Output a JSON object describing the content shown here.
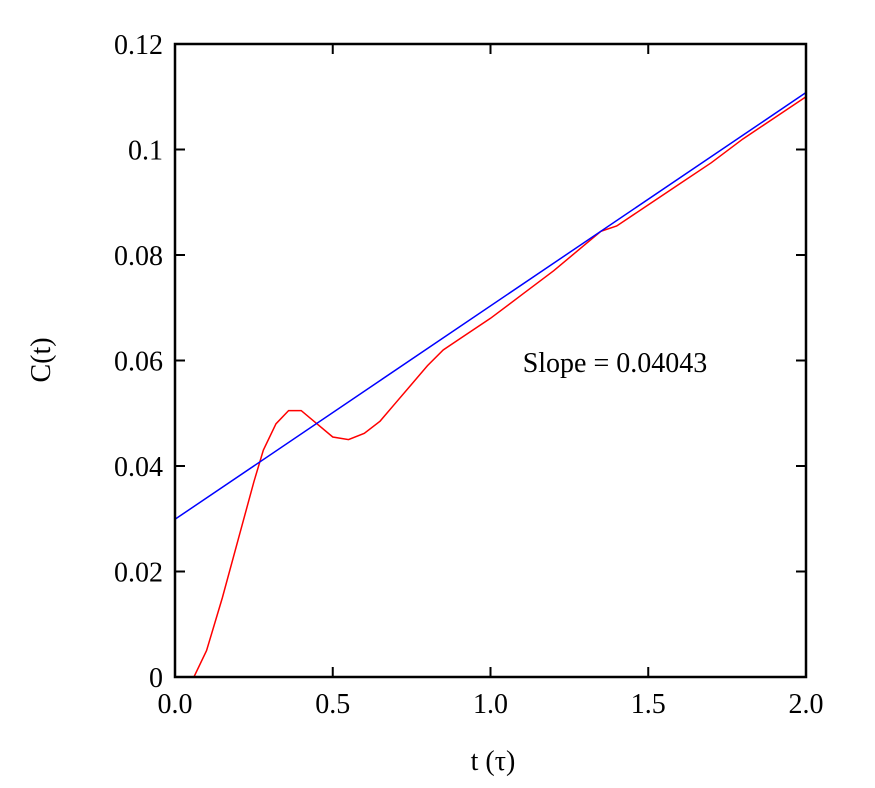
{
  "chart_data": {
    "type": "line",
    "xlabel": "t (τ)",
    "ylabel": "C(t)",
    "annotation": "Slope = 0.04043",
    "xlim": [
      0,
      2
    ],
    "ylim": [
      0,
      0.12
    ],
    "xticks": [
      {
        "value": 0,
        "label": "0.0"
      },
      {
        "value": 0.5,
        "label": "0.5"
      },
      {
        "value": 1,
        "label": "1.0"
      },
      {
        "value": 1.5,
        "label": "1.5"
      },
      {
        "value": 2,
        "label": "2.0"
      }
    ],
    "yticks": [
      0,
      0.02,
      0.04,
      0.06,
      0.08,
      0.1,
      0.12
    ],
    "series": [
      {
        "color": "#ff0000",
        "x": [
          0,
          0.06,
          0.1,
          0.15,
          0.2,
          0.25,
          0.28,
          0.32,
          0.36,
          0.4,
          0.45,
          0.5,
          0.55,
          0.6,
          0.65,
          0.7,
          0.75,
          0.8,
          0.85,
          0.9,
          1.0,
          1.1,
          1.2,
          1.3,
          1.35,
          1.4,
          1.5,
          1.6,
          1.7,
          1.8,
          1.9,
          2.0
        ],
        "values": [
          0,
          0,
          0.005,
          0.015,
          0.026,
          0.037,
          0.043,
          0.048,
          0.0505,
          0.0505,
          0.048,
          0.0455,
          0.045,
          0.0462,
          0.0485,
          0.052,
          0.0555,
          0.059,
          0.062,
          0.064,
          0.068,
          0.0725,
          0.077,
          0.082,
          0.0845,
          0.0855,
          0.0895,
          0.0935,
          0.0975,
          0.102,
          0.106,
          0.11
        ]
      },
      {
        "color": "#0000ff",
        "x": [
          0,
          2
        ],
        "values": [
          0.0299,
          0.1108
        ]
      }
    ]
  }
}
